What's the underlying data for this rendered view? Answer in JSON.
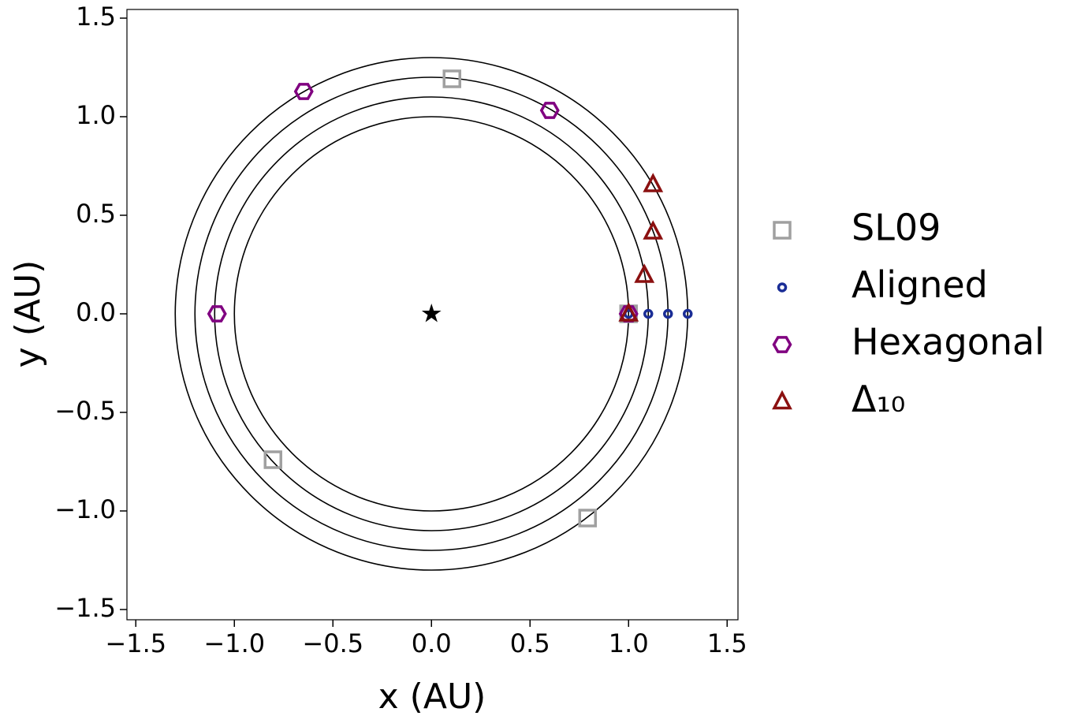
{
  "chart_data": {
    "type": "scatter",
    "xlabel": "x (AU)",
    "ylabel": "y (AU)",
    "xlim": [
      -1.545,
      1.555
    ],
    "ylim": [
      -1.552,
      1.544
    ],
    "xticks": [
      {
        "value": -1.5,
        "label": "−1.5"
      },
      {
        "value": -1.0,
        "label": "−1.0"
      },
      {
        "value": -0.5,
        "label": "−0.5"
      },
      {
        "value": 0,
        "label": "0.0"
      },
      0.5,
      {
        "value": 1.0,
        "label": "1.0"
      },
      1.5
    ],
    "yticks": [
      {
        "value": -1.5,
        "label": "−1.5"
      },
      {
        "value": -1.0,
        "label": "−1.0"
      },
      {
        "value": -0.5,
        "label": "−0.5"
      },
      {
        "value": 0,
        "label": "0.0"
      },
      0.5,
      {
        "value": 1.0,
        "label": "1.0"
      },
      1.5
    ],
    "orbits": [
      1.0,
      1.1,
      1.2,
      1.3
    ],
    "star": {
      "x": 0,
      "y": 0
    },
    "series": [
      {
        "name": "SL09",
        "color": "#a0a0a0",
        "marker": "square",
        "x": [
          0.104,
          -0.804,
          0.792,
          1.0
        ],
        "values": [
          1.192,
          -0.74,
          -1.036,
          0
        ]
      },
      {
        "name": "Aligned",
        "color": "#1a2d96",
        "marker": "circle",
        "x": [
          1.0,
          1.1,
          1.2,
          1.3
        ],
        "values": [
          0,
          0,
          0,
          0
        ]
      },
      {
        "name": "Hexagonal",
        "color": "#800080",
        "marker": "hexagon",
        "x": [
          -0.648,
          0.6,
          -1.088,
          1.0
        ],
        "values": [
          1.128,
          1.032,
          0,
          0
        ]
      },
      {
        "name": "Δ₁₀",
        "color": "#8b1010",
        "marker": "triangle",
        "x": [
          1.124,
          1.124,
          1.08,
          1.0
        ],
        "values": [
          0.656,
          0.416,
          0.196,
          0
        ]
      }
    ]
  }
}
